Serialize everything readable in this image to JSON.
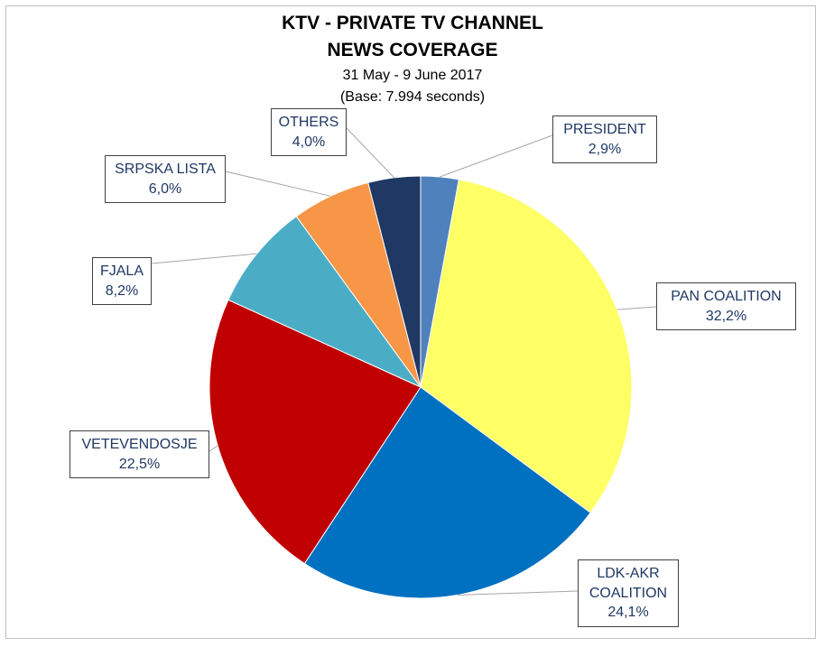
{
  "chart_data": {
    "type": "pie",
    "title": "KTV - PRIVATE TV CHANNEL",
    "title_line2": "NEWS COVERAGE",
    "subtitle": "31 May - 9 June 2017",
    "subtitle_line2": "(Base: 7.994 seconds)",
    "categories": [
      "PRESIDENT",
      "PAN COALITION",
      "LDK-AKR COALITION",
      "VETEVENDOSJE",
      "FJALA",
      "SRPSKA LISTA",
      "OTHERS"
    ],
    "values": [
      2.9,
      32.2,
      24.1,
      22.5,
      8.2,
      6.0,
      4.0
    ],
    "value_labels": [
      "2,9%",
      "32,2%",
      "24,1%",
      "22,5%",
      "8,2%",
      "6,0%",
      "4,0%"
    ],
    "colors": [
      "#4f81bd",
      "#ffff66",
      "#0070c0",
      "#c00000",
      "#4bacc6",
      "#f79646",
      "#1f3864"
    ]
  }
}
